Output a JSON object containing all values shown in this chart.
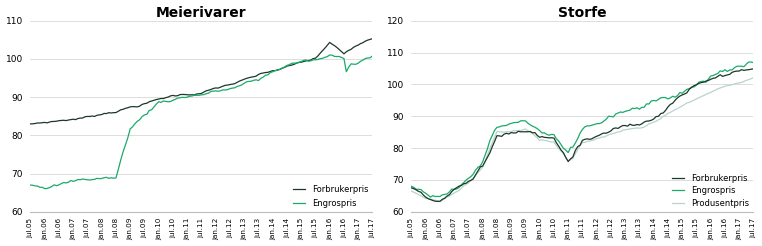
{
  "left_title": "Meierivarer",
  "right_title": "Storfe",
  "left_ylim": [
    60,
    110
  ],
  "right_ylim": [
    60,
    120
  ],
  "left_yticks": [
    60,
    70,
    80,
    90,
    100,
    110
  ],
  "right_yticks": [
    60,
    70,
    80,
    90,
    100,
    110,
    120
  ],
  "color_forbruker": "#1c3829",
  "color_engros": "#1aaa6a",
  "color_produsent": "#b8d4cc",
  "legend_left": [
    "Forbrukerpris",
    "Engrospris"
  ],
  "legend_right": [
    "Forbrukerpris",
    "Engrospris",
    "Produsentpris"
  ],
  "tick_labels": [
    "jul.05",
    "jan.06",
    "jul.06",
    "jan.07",
    "jul.07",
    "jan.08",
    "jul.08",
    "jan.09",
    "jul.09",
    "jan.10",
    "jul.10",
    "jan.11",
    "jul.11",
    "jan.12",
    "jul.12",
    "jan.13",
    "jul.13",
    "jan.14",
    "jul.14",
    "jan.15",
    "jul.15",
    "jan.16",
    "jul.16",
    "jan.17",
    "jul.17"
  ],
  "background": "#ffffff"
}
